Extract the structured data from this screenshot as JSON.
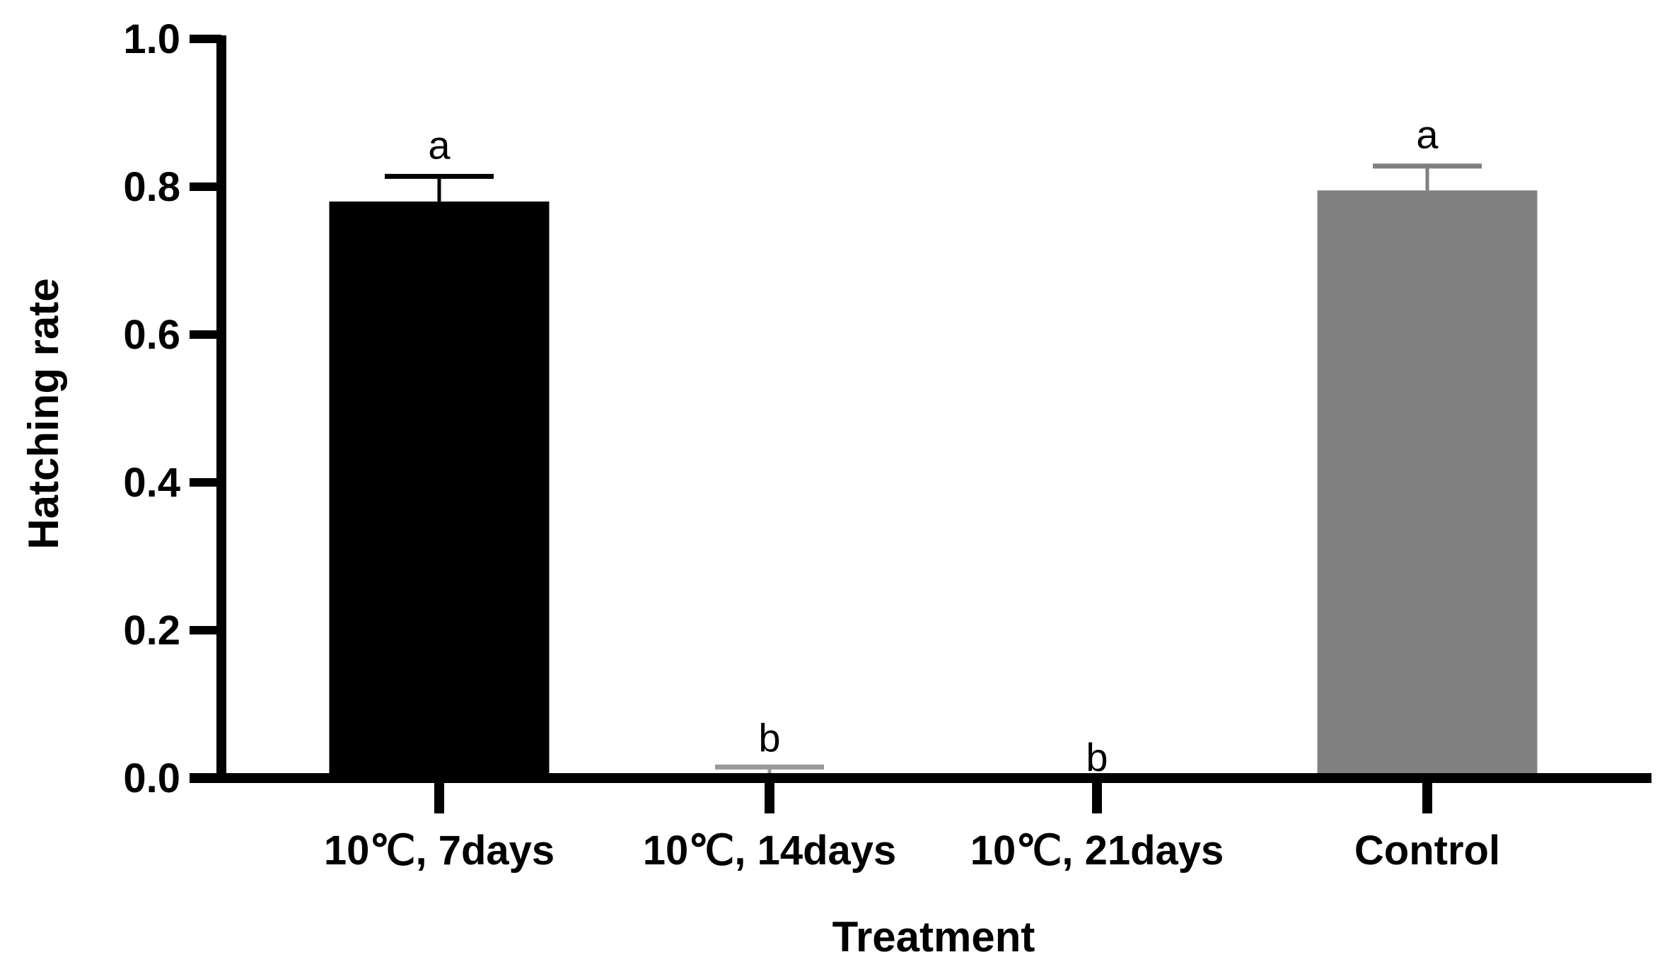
{
  "chart_data": {
    "type": "bar",
    "title": "",
    "xlabel": "Treatment",
    "ylabel": "Hatching rate",
    "ylim": [
      0,
      1.0
    ],
    "yticks": [
      "0.0",
      "0.2",
      "0.4",
      "0.6",
      "0.8",
      "1.0"
    ],
    "categories": [
      "10℃, 7days",
      "10℃, 14days",
      "10℃, 21days",
      "Control"
    ],
    "values": [
      0.78,
      0.005,
      0.0,
      0.795
    ],
    "error_upper": [
      0.814,
      0.015,
      0.0,
      0.828
    ],
    "significance": [
      "a",
      "b",
      "b",
      "a"
    ],
    "colors": [
      "#000000",
      "#999999",
      "#999999",
      "#808080"
    ],
    "grid": false,
    "legend": "none"
  }
}
